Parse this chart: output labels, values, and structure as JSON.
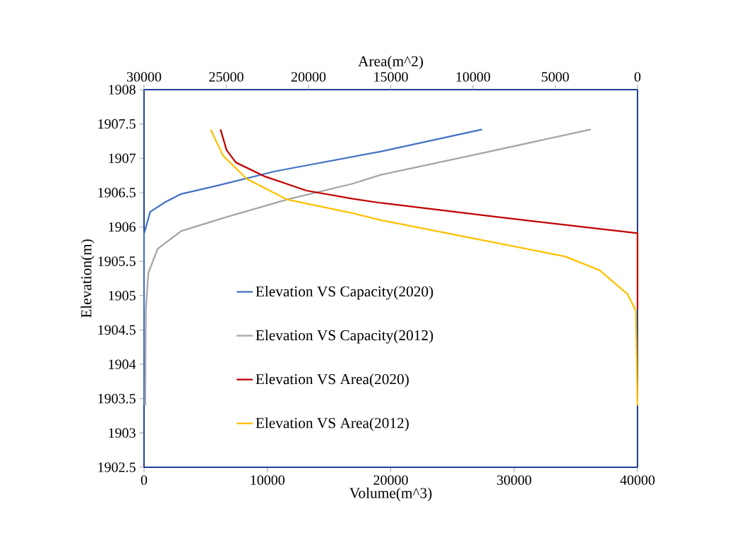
{
  "chart_data": {
    "type": "line",
    "xlabel": "Volume(m^3)",
    "ylabel": "Elevation(m)",
    "x2label": "Area(m^2)",
    "xlim": [
      0,
      40000
    ],
    "xticks": [
      0,
      10000,
      20000,
      30000,
      40000
    ],
    "x2lim": [
      30000,
      0
    ],
    "x2ticks": [
      30000,
      25000,
      20000,
      15000,
      10000,
      5000,
      0
    ],
    "ylim": [
      1902.5,
      1908
    ],
    "yticks": [
      1902.5,
      1903,
      1903.5,
      1904,
      1904.5,
      1905,
      1905.5,
      1906,
      1906.5,
      1907,
      1907.5,
      1908
    ],
    "legend": "bottom",
    "grid": false,
    "series": [
      {
        "name": "Elevation VS Capacity(2020)",
        "color": "#4472c4",
        "x": [
          0,
          0,
          500,
          1700,
          3000,
          5900,
          10600,
          19200,
          27400
        ],
        "values": [
          1903.4,
          1905.9,
          1906.22,
          1906.36,
          1906.48,
          1906.6,
          1906.81,
          1907.1,
          1907.42
        ]
      },
      {
        "name": "Elevation VS Capacity(2012)",
        "color": "#a5a5a5",
        "x": [
          100,
          150,
          350,
          1100,
          3000,
          6800,
          11600,
          16900,
          19200,
          26500,
          36200
        ],
        "values": [
          1903.4,
          1904.8,
          1905.33,
          1905.68,
          1905.94,
          1906.15,
          1906.4,
          1906.63,
          1906.76,
          1907.04,
          1907.42
        ]
      },
      {
        "name": "Elevation VS Area(2020)",
        "color": "#c00000",
        "axis": "x2",
        "x": [
          25350,
          24980,
          24420,
          22700,
          20130,
          17300,
          15600,
          8700,
          0,
          0
        ],
        "values": [
          1907.42,
          1907.12,
          1906.94,
          1906.74,
          1906.53,
          1906.41,
          1906.35,
          1906.15,
          1905.91,
          1904.8
        ]
      },
      {
        "name": "Elevation VS Area(2012)",
        "color": "#ffc000",
        "axis": "x2",
        "x": [
          25950,
          25200,
          23750,
          21300,
          17300,
          15600,
          10100,
          4400,
          2300,
          600,
          100,
          0
        ],
        "values": [
          1907.42,
          1907.04,
          1906.7,
          1906.4,
          1906.2,
          1906.1,
          1905.84,
          1905.57,
          1905.37,
          1905.02,
          1904.78,
          1903.4
        ]
      }
    ]
  }
}
